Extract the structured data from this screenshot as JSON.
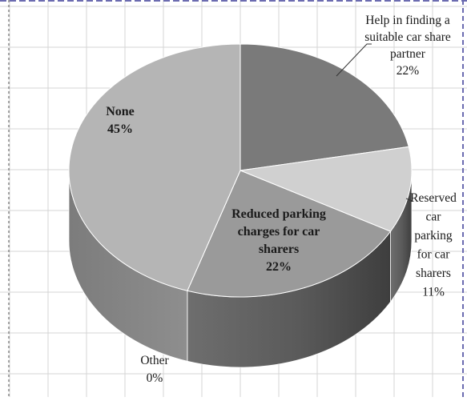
{
  "chart_data": {
    "type": "pie",
    "style": "3d",
    "slices": [
      {
        "label": "Help in finding a suitable car share partner",
        "value": 22,
        "display": "22%",
        "color": "#7a7a7a",
        "label_lines": [
          "Help in finding a",
          "suitable car share",
          "partner",
          "22%"
        ]
      },
      {
        "label": "Reserved car parking for car sharers",
        "value": 11,
        "display": "11%",
        "color": "#d0d0d0",
        "label_lines": [
          "Reserved",
          "car",
          "parking",
          "for car",
          "sharers",
          "11%"
        ]
      },
      {
        "label": "Reduced parking charges for car sharers",
        "value": 22,
        "display": "22%",
        "color": "#9a9a9a",
        "label_lines": [
          "Reduced parking",
          "charges for car",
          "sharers",
          "22%"
        ]
      },
      {
        "label": "Other",
        "value": 0,
        "display": "0%",
        "color": "#8c8c8c",
        "label_lines": [
          "Other",
          "0%"
        ]
      },
      {
        "label": "None",
        "value": 45,
        "display": "45%",
        "color": "#b5b5b5",
        "label_lines": [
          "None",
          "45%"
        ]
      }
    ],
    "legend": "none",
    "grid": true
  }
}
